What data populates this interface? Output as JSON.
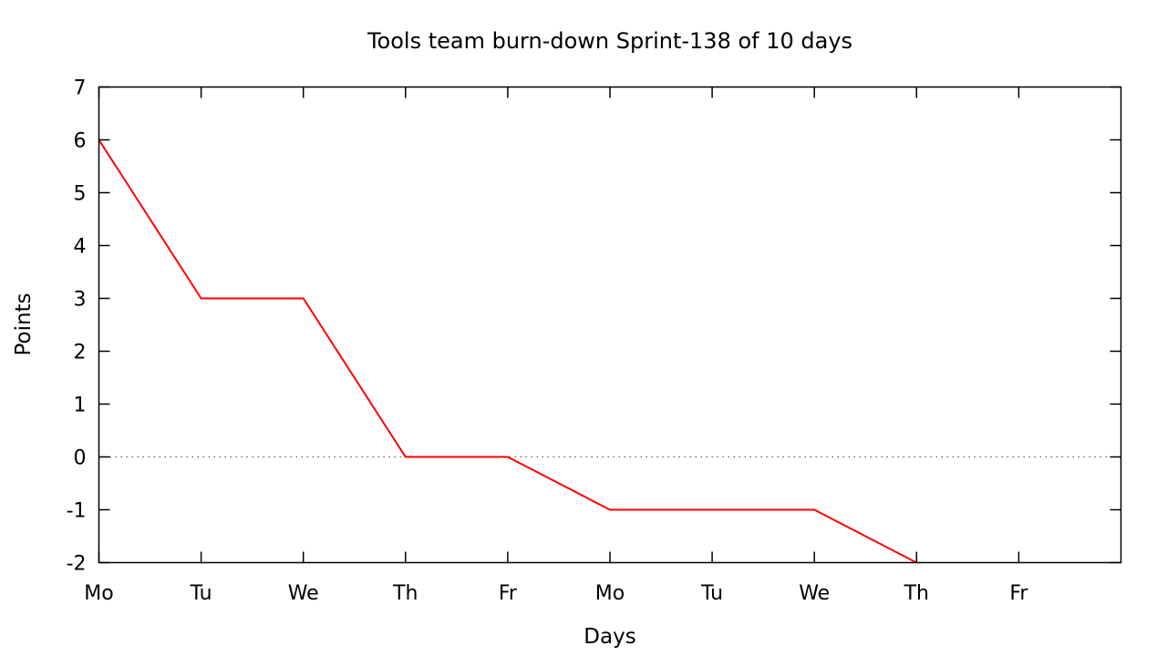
{
  "chart_data": {
    "type": "line",
    "title": "Tools team burn-down Sprint-138 of 10 days",
    "xlabel": "Days",
    "ylabel": "Points",
    "categories": [
      "Mo",
      "Tu",
      "We",
      "Th",
      "Fr",
      "Mo",
      "Tu",
      "We",
      "Th",
      "Fr"
    ],
    "x": [
      0,
      1,
      2,
      3,
      4,
      5,
      6,
      7,
      8
    ],
    "values": [
      6,
      3,
      3,
      0,
      0,
      -1,
      -1,
      -1,
      -2
    ],
    "xlim": [
      0,
      10
    ],
    "ylim": [
      -2,
      7
    ],
    "yticks": [
      -2,
      -1,
      0,
      1,
      2,
      3,
      4,
      5,
      6,
      7
    ],
    "line_color": "#ff0000",
    "border_color": "#000000",
    "zero_line": {
      "y": 0,
      "style": "dotted",
      "color": "#4d4d4d"
    },
    "background": "#ffffff",
    "grid": "off",
    "legend": "none",
    "markers": "none"
  }
}
